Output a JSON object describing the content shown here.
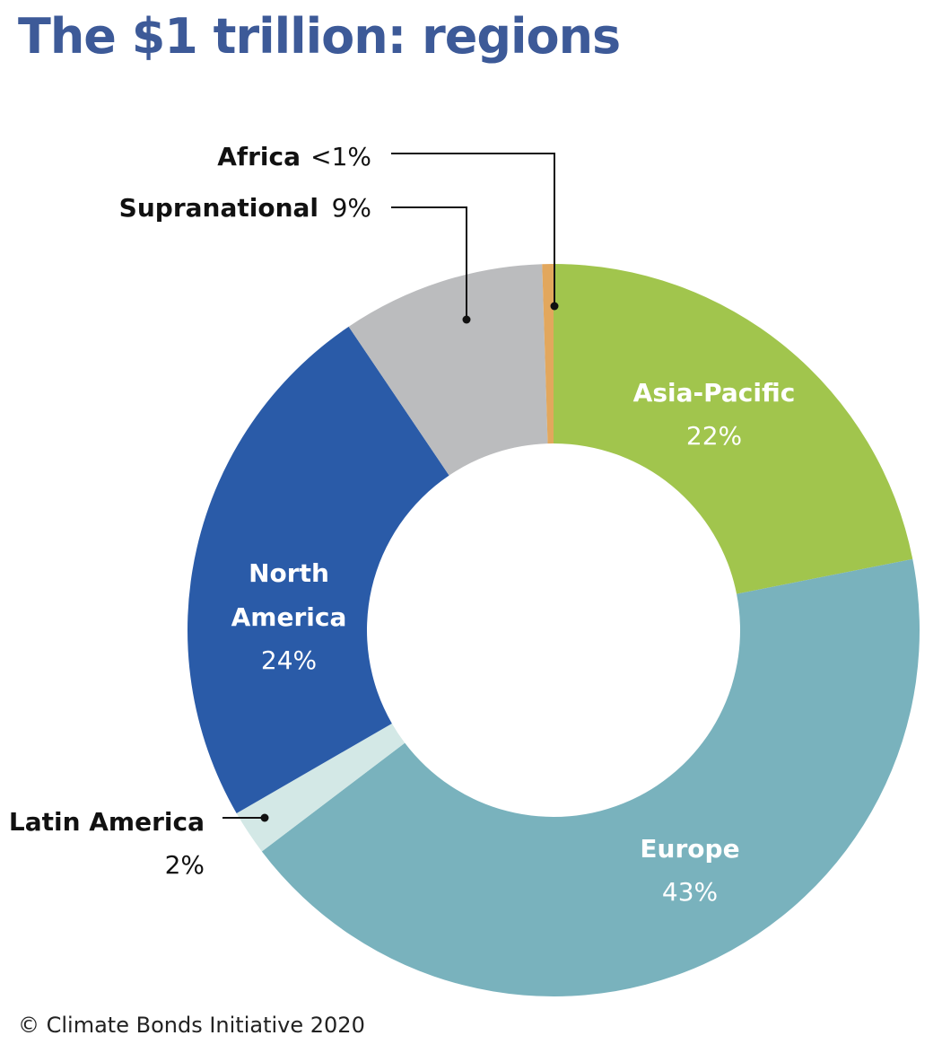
{
  "title": "The $1 trillion: regions",
  "footer": "© Climate Bonds Initiative 2020",
  "chart_data": {
    "type": "pie",
    "style": "donut",
    "categories": [
      "Asia-Pacific",
      "Europe",
      "Latin America",
      "North America",
      "Supranational",
      "Africa"
    ],
    "values": [
      22,
      43,
      2,
      24,
      9,
      0.5
    ],
    "value_labels": [
      "22%",
      "43%",
      "2%",
      "24%",
      "9%",
      "<1%"
    ],
    "colors": [
      "#a1c54d",
      "#79b2bd",
      "#d3e8e6",
      "#2a5ba8",
      "#bbbcbe",
      "#e2a75d"
    ]
  }
}
